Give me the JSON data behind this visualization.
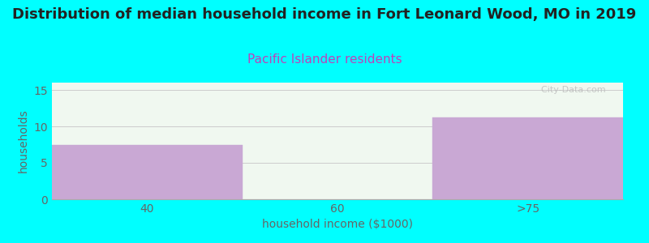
{
  "title": "Distribution of median household income in Fort Leonard Wood, MO in 2019",
  "subtitle": "Pacific Islander residents",
  "xlabel": "household income ($1000)",
  "ylabel": "households",
  "background_color": "#00FFFF",
  "plot_bg_color": "#f0f8f0",
  "bar_colors": [
    "#c9a8d4",
    "#dce8dc",
    "#c9a8d4"
  ],
  "bar_edge_colors": [
    "#c9a8d4",
    "#dce8dc",
    "#c9a8d4"
  ],
  "categories": [
    "40",
    "60",
    ">75"
  ],
  "values": [
    7.5,
    0.0,
    11.2
  ],
  "ylim": [
    0,
    16
  ],
  "yticks": [
    0,
    5,
    10,
    15
  ],
  "title_fontsize": 13,
  "subtitle_fontsize": 11,
  "subtitle_color": "#bb44bb",
  "axis_label_fontsize": 10,
  "tick_fontsize": 10,
  "tick_color": "#666666",
  "watermark": "  City-Data.com",
  "grid_color": "#cccccc",
  "title_color": "#222222"
}
